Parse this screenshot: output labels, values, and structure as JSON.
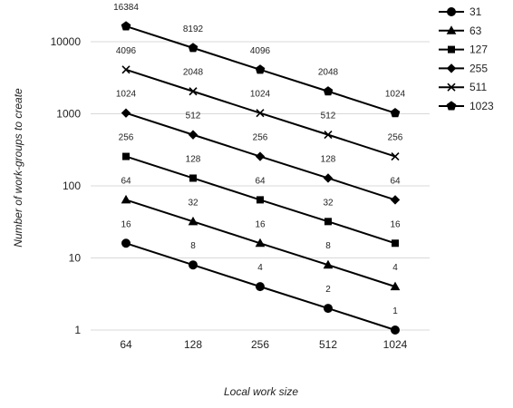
{
  "chart_data": {
    "type": "line",
    "xlabel": "Local work size",
    "ylabel": "Number of work-groups to create",
    "y_scale": "log",
    "ylim": [
      1,
      16384
    ],
    "grid": true,
    "legend_position": "right",
    "categories": [
      "64",
      "128",
      "256",
      "512",
      "1024"
    ],
    "y_ticks": [
      "1",
      "10",
      "100",
      "1000",
      "10000"
    ],
    "series": [
      {
        "name": "31",
        "marker": "circle",
        "values": [
          16,
          8,
          4,
          2,
          1
        ],
        "labels": [
          "16",
          "8",
          "4",
          "2",
          "1"
        ]
      },
      {
        "name": "63",
        "marker": "triangle",
        "values": [
          64,
          32,
          16,
          8,
          4
        ],
        "labels": [
          "64",
          "32",
          "16",
          "8",
          "4"
        ]
      },
      {
        "name": "127",
        "marker": "square",
        "values": [
          256,
          128,
          64,
          32,
          16
        ],
        "labels": [
          "256",
          "128",
          "64",
          "32",
          "16"
        ]
      },
      {
        "name": "255",
        "marker": "diamond",
        "values": [
          1024,
          512,
          256,
          128,
          64
        ],
        "labels": [
          "1024",
          "512",
          "256",
          "128",
          "64"
        ]
      },
      {
        "name": "511",
        "marker": "x",
        "values": [
          4096,
          2048,
          1024,
          512,
          256
        ],
        "labels": [
          "4096",
          "2048",
          "1024",
          "512",
          "256"
        ]
      },
      {
        "name": "1023",
        "marker": "pentagon",
        "values": [
          16384,
          8192,
          4096,
          2048,
          1024
        ],
        "labels": [
          "16384",
          "8192",
          "4096",
          "2048",
          "1024"
        ]
      }
    ],
    "colors": {
      "series": "#000000",
      "grid": "#d9d9d9",
      "text": "#222222"
    }
  }
}
